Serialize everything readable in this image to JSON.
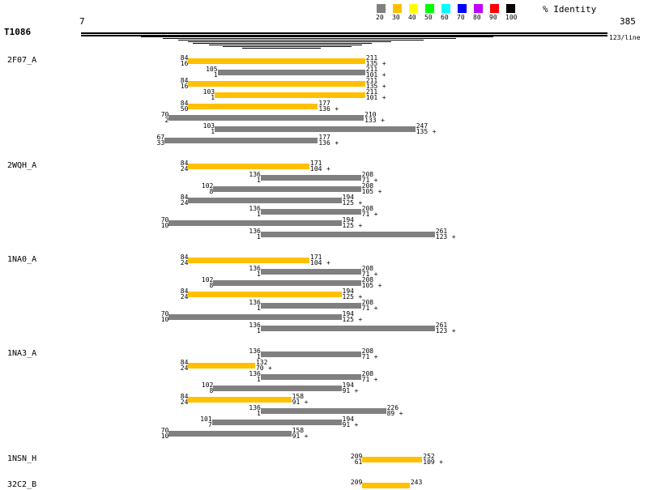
{
  "query": {
    "name": "T1086",
    "start": 7,
    "end": 385,
    "scale_label": "123/line"
  },
  "legend": {
    "title": "% Identity",
    "items": [
      {
        "label": "20",
        "color": "#808080"
      },
      {
        "label": "30",
        "color": "#ffc000"
      },
      {
        "label": "40",
        "color": "#ffff00"
      },
      {
        "label": "50",
        "color": "#00ff00"
      },
      {
        "label": "60",
        "color": "#00ffff"
      },
      {
        "label": "70",
        "color": "#0000ff"
      },
      {
        "label": "80",
        "color": "#c000ff"
      },
      {
        "label": "90",
        "color": "#ff0000"
      },
      {
        "label": "100",
        "color": "#000000"
      }
    ]
  },
  "coverage_lines": [
    [
      7,
      385
    ],
    [
      7,
      385
    ],
    [
      50,
      303
    ],
    [
      66,
      276
    ],
    [
      77,
      253
    ],
    [
      84,
      230
    ],
    [
      87,
      216
    ],
    [
      99,
      209
    ],
    [
      109,
      201
    ],
    [
      123,
      179
    ]
  ],
  "groups": [
    {
      "name": "2F07_A",
      "hits": [
        {
          "qs": 84,
          "qe": 211,
          "ts": 16,
          "te": 135,
          "id": 30
        },
        {
          "qs": 105,
          "qe": 211,
          "ts": 1,
          "te": 101,
          "id": 20
        },
        {
          "qs": 84,
          "qe": 211,
          "ts": 16,
          "te": 135,
          "id": 30
        },
        {
          "qs": 103,
          "qe": 211,
          "ts": 1,
          "te": 101,
          "id": 30
        },
        {
          "qs": 84,
          "qe": 177,
          "ts": 50,
          "te": 136,
          "id": 30
        },
        {
          "qs": 70,
          "qe": 210,
          "ts": 2,
          "te": 133,
          "id": 20
        },
        {
          "qs": 103,
          "qe": 247,
          "ts": 1,
          "te": 135,
          "id": 20
        },
        {
          "qs": 67,
          "qe": 177,
          "ts": 33,
          "te": 136,
          "id": 20
        }
      ]
    },
    {
      "name": "2WQH_A",
      "hits": [
        {
          "qs": 84,
          "qe": 171,
          "ts": 24,
          "te": 104,
          "id": 30
        },
        {
          "qs": 136,
          "qe": 208,
          "ts": 1,
          "te": 71,
          "id": 20
        },
        {
          "qs": 102,
          "qe": 208,
          "ts": 8,
          "te": 105,
          "id": 20
        },
        {
          "qs": 84,
          "qe": 194,
          "ts": 24,
          "te": 125,
          "id": 20
        },
        {
          "qs": 136,
          "qe": 208,
          "ts": 1,
          "te": 71,
          "id": 20
        },
        {
          "qs": 70,
          "qe": 194,
          "ts": 10,
          "te": 125,
          "id": 20
        },
        {
          "qs": 136,
          "qe": 261,
          "ts": 1,
          "te": 123,
          "id": 20
        }
      ]
    },
    {
      "name": "1NA0_A",
      "hits": [
        {
          "qs": 84,
          "qe": 171,
          "ts": 24,
          "te": 104,
          "id": 30
        },
        {
          "qs": 136,
          "qe": 208,
          "ts": 1,
          "te": 71,
          "id": 20
        },
        {
          "qs": 102,
          "qe": 208,
          "ts": 8,
          "te": 105,
          "id": 20
        },
        {
          "qs": 84,
          "qe": 194,
          "ts": 24,
          "te": 125,
          "id": 30
        },
        {
          "qs": 136,
          "qe": 208,
          "ts": 1,
          "te": 71,
          "id": 20
        },
        {
          "qs": 70,
          "qe": 194,
          "ts": 10,
          "te": 125,
          "id": 20
        },
        {
          "qs": 136,
          "qe": 261,
          "ts": 1,
          "te": 123,
          "id": 20
        }
      ]
    },
    {
      "name": "1NA3_A",
      "hits": [
        {
          "qs": 136,
          "qe": 208,
          "ts": 1,
          "te": 71,
          "id": 20
        },
        {
          "qs": 84,
          "qe": 132,
          "ts": 24,
          "te": 70,
          "id": 30
        },
        {
          "qs": 136,
          "qe": 208,
          "ts": 1,
          "te": 71,
          "id": 20
        },
        {
          "qs": 102,
          "qe": 194,
          "ts": 8,
          "te": 91,
          "id": 20
        },
        {
          "qs": 84,
          "qe": 158,
          "ts": 24,
          "te": 91,
          "id": 30
        },
        {
          "qs": 136,
          "qe": 226,
          "ts": 1,
          "te": 89,
          "id": 20
        },
        {
          "qs": 101,
          "qe": 194,
          "ts": 7,
          "te": 91,
          "id": 20
        },
        {
          "qs": 70,
          "qe": 158,
          "ts": 10,
          "te": 91,
          "id": 20
        }
      ]
    },
    {
      "name": "1NSN_H",
      "hits": [
        {
          "qs": 209,
          "qe": 252,
          "ts": 61,
          "te": 109,
          "id": 30
        }
      ]
    },
    {
      "name": "32C2_B",
      "hits": [
        {
          "qs": 209,
          "qe": 243,
          "id": 30
        }
      ]
    }
  ],
  "strand": "+"
}
